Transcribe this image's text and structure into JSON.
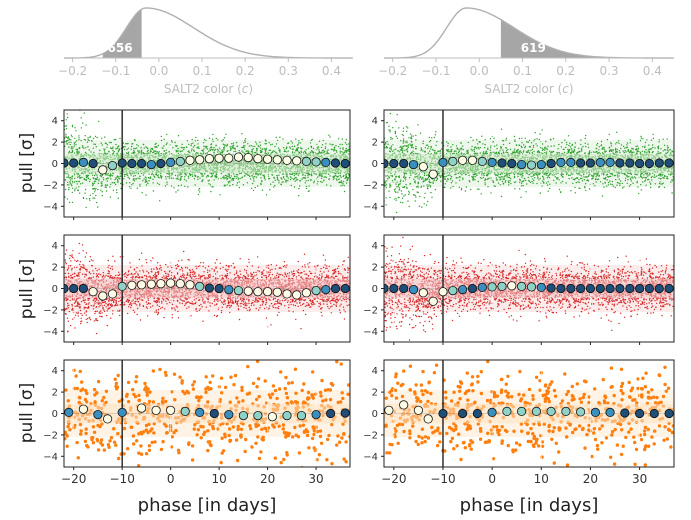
{
  "figure": {
    "ylabel_text": "pull [σ]",
    "xlabel_text": "phase [in days]"
  },
  "colors": {
    "green": "#2ca02c",
    "red": "#d62728",
    "orange": "#ff7f0e",
    "hist_gray": "#a6a6a6",
    "curve_gray": "#b0b0b0",
    "axis_gray": "#bdbdbd",
    "marker_dark": "#1f4e79",
    "marker_mid": "#3a8fbf",
    "marker_light": "#8fd3c8",
    "marker_pale": "#fbfbe6"
  },
  "chart_data": [
    {
      "type": "area",
      "panel": "histogram-left",
      "xlabel": "SALT2 color (c)",
      "xlim": [
        -0.22,
        0.45
      ],
      "xticks": [
        -0.2,
        -0.1,
        0.0,
        0.1,
        0.2,
        0.3,
        0.4
      ],
      "curve": {
        "peak": -0.03,
        "sigma_left": 0.045,
        "sigma_right": 0.11
      },
      "shaded_range": [
        -0.13,
        -0.04
      ],
      "annotation": "656"
    },
    {
      "type": "area",
      "panel": "histogram-right",
      "xlabel": "SALT2 color (c)",
      "xlim": [
        -0.22,
        0.45
      ],
      "xticks": [
        -0.2,
        -0.1,
        0.0,
        0.1,
        0.2,
        0.3,
        0.4
      ],
      "curve": {
        "peak": -0.03,
        "sigma_left": 0.045,
        "sigma_right": 0.11
      },
      "shaded_range": [
        0.05,
        0.28
      ],
      "annotation": "619"
    },
    {
      "type": "scatter",
      "panel": "green-left",
      "band": "green",
      "xlim": [
        -22,
        37
      ],
      "ylim": [
        -5,
        5
      ],
      "xticks": [
        -20,
        -10,
        0,
        10,
        20,
        30
      ],
      "yticks": [
        -4,
        -2,
        0,
        2,
        4
      ],
      "vline_x": -10,
      "binned_x": [
        -22,
        -20,
        -18,
        -16,
        -14,
        -12,
        -10,
        -8,
        -6,
        -4,
        -2,
        0,
        2,
        4,
        6,
        8,
        10,
        12,
        14,
        16,
        18,
        20,
        22,
        24,
        26,
        28,
        30,
        32,
        34,
        36
      ],
      "binned_y": [
        0.05,
        0.05,
        0.1,
        0.0,
        -0.6,
        -0.2,
        0.05,
        0.0,
        0.0,
        -0.1,
        0.0,
        0.1,
        0.2,
        0.3,
        0.35,
        0.45,
        0.5,
        0.5,
        0.6,
        0.55,
        0.45,
        0.4,
        0.35,
        0.3,
        0.25,
        0.2,
        0.15,
        0.1,
        0.05,
        0.0
      ]
    },
    {
      "type": "scatter",
      "panel": "green-right",
      "band": "green",
      "xlim": [
        -22,
        37
      ],
      "ylim": [
        -5,
        5
      ],
      "xticks": [
        -20,
        -10,
        0,
        10,
        20,
        30
      ],
      "yticks": [
        -4,
        -2,
        0,
        2,
        4
      ],
      "vline_x": -10,
      "binned_x": [
        -22,
        -20,
        -18,
        -16,
        -14,
        -12,
        -10,
        -8,
        -6,
        -4,
        -2,
        0,
        2,
        4,
        6,
        8,
        10,
        12,
        14,
        16,
        18,
        20,
        22,
        24,
        26,
        28,
        30,
        32,
        34,
        36
      ],
      "binned_y": [
        0.0,
        0.0,
        0.0,
        -0.1,
        -0.3,
        -1.0,
        0.1,
        0.2,
        0.3,
        0.3,
        0.2,
        0.1,
        0.05,
        0.0,
        -0.1,
        -0.15,
        -0.1,
        0.0,
        0.1,
        0.1,
        0.05,
        0.05,
        0.1,
        0.1,
        0.05,
        0.05,
        0.0,
        0.0,
        0.05,
        0.05
      ]
    },
    {
      "type": "scatter",
      "panel": "red-left",
      "band": "red",
      "xlim": [
        -22,
        37
      ],
      "ylim": [
        -5,
        5
      ],
      "xticks": [
        -20,
        -10,
        0,
        10,
        20,
        30
      ],
      "yticks": [
        -4,
        -2,
        0,
        2,
        4
      ],
      "vline_x": -10,
      "binned_x": [
        -22,
        -20,
        -18,
        -16,
        -14,
        -12,
        -10,
        -8,
        -6,
        -4,
        -2,
        0,
        2,
        4,
        6,
        8,
        10,
        12,
        14,
        16,
        18,
        20,
        22,
        24,
        26,
        28,
        30,
        32,
        34,
        36
      ],
      "binned_y": [
        0.0,
        0.0,
        0.0,
        -0.3,
        -0.7,
        -0.5,
        0.2,
        0.3,
        0.35,
        0.4,
        0.45,
        0.5,
        0.45,
        0.35,
        0.2,
        0.05,
        0.0,
        -0.1,
        -0.2,
        -0.25,
        -0.3,
        -0.3,
        -0.35,
        -0.5,
        -0.6,
        -0.4,
        -0.2,
        -0.1,
        0.0,
        0.0
      ]
    },
    {
      "type": "scatter",
      "panel": "red-right",
      "band": "red",
      "xlim": [
        -22,
        37
      ],
      "ylim": [
        -5,
        5
      ],
      "xticks": [
        -20,
        -10,
        0,
        10,
        20,
        30
      ],
      "yticks": [
        -4,
        -2,
        0,
        2,
        4
      ],
      "vline_x": -10,
      "binned_x": [
        -22,
        -20,
        -18,
        -16,
        -14,
        -12,
        -10,
        -8,
        -6,
        -4,
        -2,
        0,
        2,
        4,
        6,
        8,
        10,
        12,
        14,
        16,
        18,
        20,
        22,
        24,
        26,
        28,
        30,
        32,
        34,
        36
      ],
      "binned_y": [
        0.0,
        0.0,
        0.0,
        -0.1,
        -0.4,
        -1.2,
        -0.3,
        -0.2,
        -0.1,
        0.0,
        0.1,
        0.15,
        0.2,
        0.25,
        0.2,
        0.15,
        0.1,
        0.05,
        0.0,
        0.0,
        0.0,
        0.0,
        0.0,
        0.0,
        0.0,
        0.0,
        0.0,
        0.0,
        0.0,
        0.0
      ]
    },
    {
      "type": "scatter",
      "panel": "orange-left",
      "band": "orange",
      "xlim": [
        -22,
        37
      ],
      "ylim": [
        -5,
        5
      ],
      "xticks": [
        -20,
        -10,
        0,
        10,
        20,
        30
      ],
      "yticks": [
        -4,
        -2,
        0,
        2,
        4
      ],
      "vline_x": -10,
      "binned_x": [
        -21,
        -18,
        -15,
        -13,
        -10,
        -6,
        -3,
        0,
        3,
        6,
        9,
        12,
        15,
        18,
        21,
        24,
        27,
        30,
        33,
        36
      ],
      "binned_y": [
        0.1,
        0.4,
        -0.1,
        -0.5,
        0.1,
        0.5,
        0.3,
        0.3,
        0.2,
        0.1,
        0.0,
        -0.1,
        -0.2,
        -0.2,
        -0.3,
        -0.2,
        -0.2,
        -0.1,
        0.0,
        0.05
      ]
    },
    {
      "type": "scatter",
      "panel": "orange-right",
      "band": "orange",
      "xlim": [
        -22,
        37
      ],
      "ylim": [
        -5,
        5
      ],
      "xticks": [
        -20,
        -10,
        0,
        10,
        20,
        30
      ],
      "yticks": [
        -4,
        -2,
        0,
        2,
        4
      ],
      "vline_x": -10,
      "binned_x": [
        -21,
        -18,
        -15,
        -13,
        -10,
        -6,
        -3,
        0,
        3,
        6,
        9,
        12,
        15,
        18,
        21,
        24,
        27,
        30,
        33,
        36
      ],
      "binned_y": [
        0.3,
        0.8,
        0.3,
        -0.5,
        0.0,
        0.0,
        0.0,
        0.1,
        0.2,
        0.2,
        0.2,
        0.2,
        0.2,
        0.15,
        0.1,
        0.1,
        0.05,
        0.0,
        0.0,
        0.0
      ]
    }
  ]
}
